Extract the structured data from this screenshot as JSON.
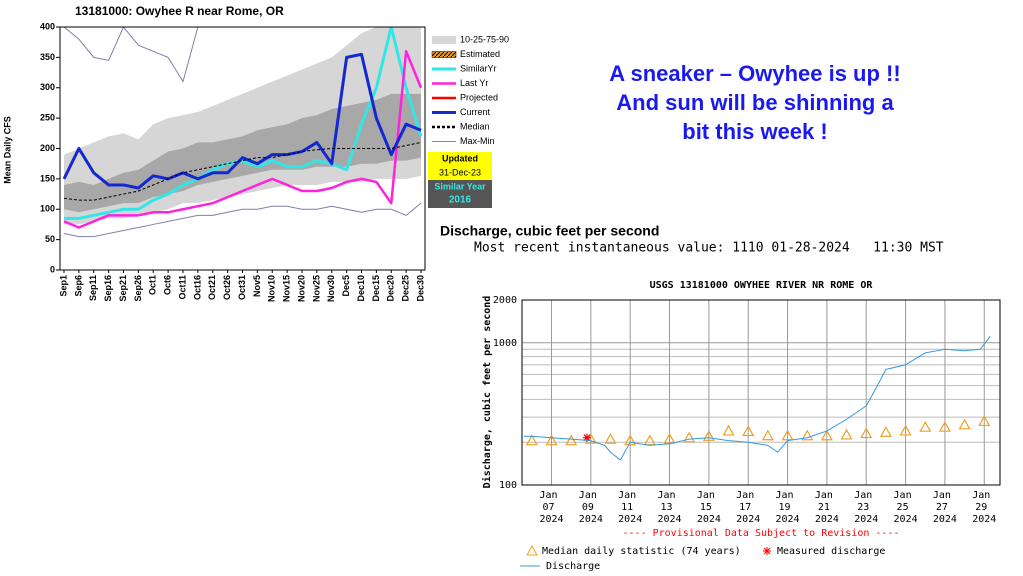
{
  "slide": {
    "text": [
      "A sneaker – Owyhee is up !!",
      "And sun will be shinning a",
      "bit this week !"
    ],
    "discharge_heading": "Discharge, cubic feet per second",
    "recent": "Most recent instantaneous value: 1110 01-28-2024   11:30 MST"
  },
  "chart_data": [
    {
      "type": "line",
      "title": "13181000: Owyhee R near Rome, OR",
      "ylabel": "Mean Daily CFS",
      "categories": [
        "Sep1",
        "Sep6",
        "Sep11",
        "Sep16",
        "Sep21",
        "Sep26",
        "Oct1",
        "Oct6",
        "Oct11",
        "Oct16",
        "Oct21",
        "Oct26",
        "Oct31",
        "Nov5",
        "Nov10",
        "Nov15",
        "Nov20",
        "Nov25",
        "Nov30",
        "Dec5",
        "Dec10",
        "Dec15",
        "Dec20",
        "Dec25",
        "Dec30"
      ],
      "ylim": [
        0,
        400
      ],
      "yticks": [
        0,
        50,
        100,
        150,
        200,
        250,
        300,
        350,
        400
      ],
      "series": [
        {
          "name": "10-25-75-90",
          "colors": [
            "#d6d6d6",
            "#a8a8a8"
          ],
          "p10": [
            75,
            75,
            80,
            85,
            85,
            90,
            95,
            100,
            110,
            110,
            115,
            120,
            125,
            130,
            135,
            140,
            140,
            140,
            145,
            145,
            145,
            150,
            150,
            150,
            155
          ],
          "p25": [
            100,
            95,
            100,
            105,
            110,
            110,
            120,
            125,
            130,
            140,
            145,
            150,
            155,
            160,
            165,
            165,
            165,
            170,
            170,
            170,
            175,
            175,
            180,
            180,
            185
          ],
          "p75": [
            140,
            145,
            140,
            150,
            160,
            165,
            180,
            195,
            200,
            210,
            210,
            215,
            220,
            230,
            235,
            240,
            250,
            255,
            265,
            270,
            275,
            280,
            290,
            290,
            290
          ],
          "p90": [
            190,
            200,
            210,
            220,
            225,
            215,
            240,
            250,
            255,
            260,
            270,
            280,
            290,
            300,
            310,
            320,
            330,
            340,
            350,
            370,
            390,
            400,
            400,
            400,
            400
          ]
        },
        {
          "name": "Estimated",
          "color": "#f0a020"
        },
        {
          "name": "SimilarYr",
          "color": "#33e6e6",
          "width": 3,
          "values": [
            85,
            85,
            90,
            95,
            100,
            100,
            115,
            125,
            140,
            150,
            165,
            175,
            180,
            170,
            180,
            170,
            170,
            180,
            175,
            165,
            240,
            300,
            400,
            300,
            220
          ]
        },
        {
          "name": "Last Yr",
          "color": "#ff22dd",
          "width": 2.5,
          "values": [
            80,
            70,
            80,
            90,
            90,
            90,
            95,
            95,
            100,
            105,
            110,
            120,
            130,
            140,
            150,
            140,
            130,
            130,
            135,
            145,
            150,
            145,
            110,
            360,
            300
          ]
        },
        {
          "name": "Projected",
          "color": "#ff0000"
        },
        {
          "name": "Current",
          "color": "#1428d0",
          "width": 3,
          "values": [
            150,
            200,
            160,
            140,
            140,
            135,
            155,
            150,
            160,
            150,
            160,
            160,
            185,
            175,
            190,
            190,
            195,
            210,
            175,
            350,
            355,
            250,
            190,
            240,
            230
          ]
        },
        {
          "name": "Median",
          "color": "#000000",
          "dash": true,
          "values": [
            118,
            115,
            115,
            120,
            125,
            130,
            140,
            150,
            160,
            165,
            170,
            175,
            180,
            185,
            185,
            190,
            195,
            198,
            200,
            200,
            200,
            200,
            200,
            205,
            210
          ]
        },
        {
          "name": "Max-Min",
          "color": "#8080a8",
          "max": [
            400,
            380,
            350,
            345,
            400,
            370,
            360,
            350,
            310,
            400,
            null,
            null,
            null,
            null,
            null,
            null,
            null,
            null,
            null,
            null,
            null,
            null,
            null,
            null,
            null
          ],
          "min": [
            60,
            55,
            55,
            60,
            65,
            70,
            75,
            80,
            85,
            90,
            90,
            95,
            100,
            100,
            105,
            105,
            100,
            100,
            105,
            100,
            95,
            100,
            100,
            90,
            110
          ]
        }
      ],
      "annotations": [
        "Updated",
        "31-Dec-23",
        "Similar Year",
        "2016"
      ]
    },
    {
      "type": "line",
      "title": "USGS 13181000 OWYHEE RIVER NR ROME OR",
      "ylabel": "Discharge, cubic feet per second",
      "log_y": true,
      "ylim": [
        100,
        2000
      ],
      "yticks": [
        100,
        1000,
        2000
      ],
      "y_minor_grid": [
        200,
        300,
        400,
        500,
        600,
        700,
        800,
        900
      ],
      "xlim": [
        5.5,
        29.8
      ],
      "xticks": [
        {
          "value": 7,
          "label": "Jan 07 2024"
        },
        {
          "value": 9,
          "label": "Jan 09 2024"
        },
        {
          "value": 11,
          "label": "Jan 11 2024"
        },
        {
          "value": 13,
          "label": "Jan 13 2024"
        },
        {
          "value": 15,
          "label": "Jan 15 2024"
        },
        {
          "value": 17,
          "label": "Jan 17 2024"
        },
        {
          "value": 19,
          "label": "Jan 19 2024"
        },
        {
          "value": 21,
          "label": "Jan 21 2024"
        },
        {
          "value": 23,
          "label": "Jan 23 2024"
        },
        {
          "value": 25,
          "label": "Jan 25 2024"
        },
        {
          "value": 27,
          "label": "Jan 27 2024"
        },
        {
          "value": 29,
          "label": "Jan 29 2024"
        }
      ],
      "series": [
        {
          "name": "Median daily statistic (74 years)",
          "color": "#f0a020",
          "marker": "triangle",
          "x": [
            6,
            7,
            8,
            9,
            10,
            11,
            12,
            13,
            14,
            15,
            16,
            17,
            18,
            19,
            20,
            21,
            22,
            23,
            24,
            25,
            26,
            27,
            28,
            29
          ],
          "values": [
            205,
            205,
            205,
            210,
            210,
            205,
            205,
            210,
            215,
            220,
            240,
            238,
            222,
            222,
            222,
            222,
            225,
            230,
            235,
            240,
            255,
            255,
            265,
            280
          ]
        },
        {
          "name": "Measured discharge",
          "color": "#ff0000",
          "marker": "star",
          "x": [
            8.8
          ],
          "values": [
            215
          ]
        },
        {
          "name": "Discharge",
          "color": "#3399dd",
          "x": [
            5.6,
            6,
            7,
            8,
            9,
            9.7,
            10,
            10.5,
            11,
            12,
            13,
            14,
            15,
            16,
            17,
            18,
            18.5,
            19,
            20,
            21,
            22,
            23,
            23.5,
            24,
            25,
            26,
            27,
            28,
            28.8,
            29.3
          ],
          "values": [
            220,
            220,
            215,
            210,
            205,
            190,
            170,
            150,
            200,
            190,
            195,
            210,
            215,
            205,
            200,
            190,
            170,
            205,
            215,
            240,
            290,
            360,
            480,
            650,
            700,
            850,
            900,
            880,
            900,
            1110
          ]
        }
      ],
      "note": "---- Provisional Data Subject to Revision ----"
    }
  ]
}
